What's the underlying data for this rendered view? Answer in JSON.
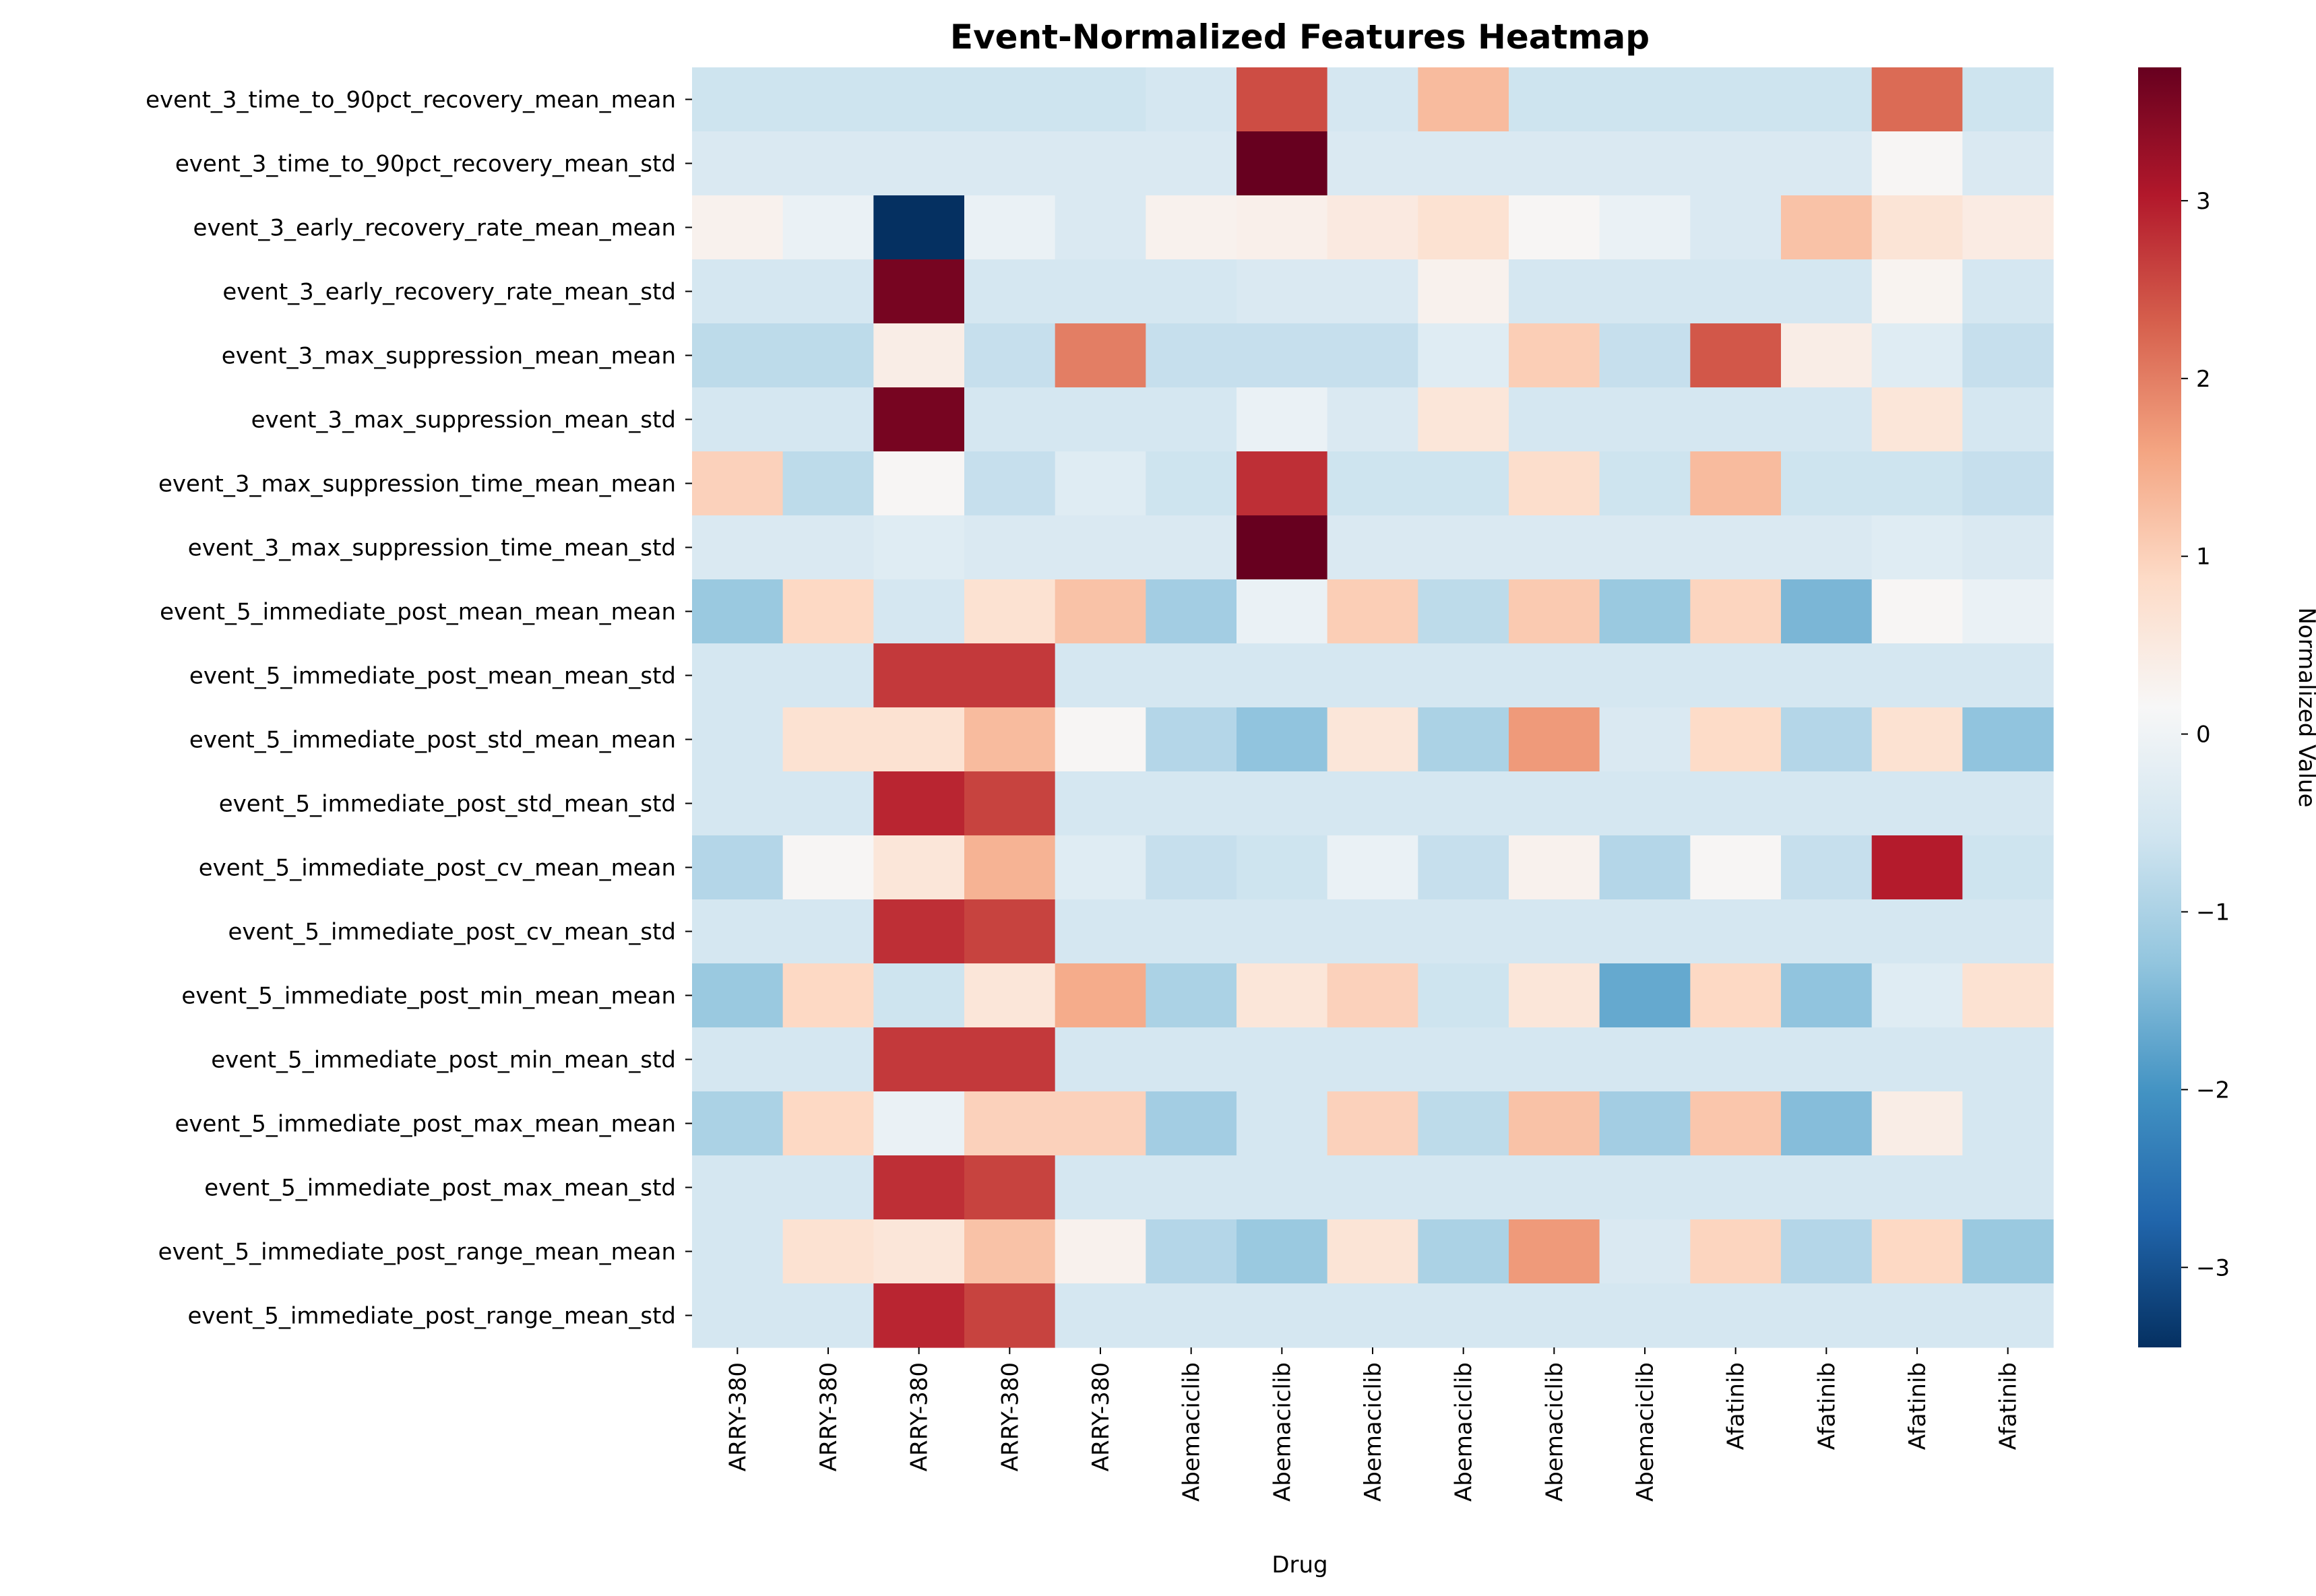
{
  "chart_data": {
    "type": "heatmap",
    "title": "Event-Normalized Features Heatmap",
    "xlabel": "Drug",
    "ylabel": "",
    "colorbar_label": "Normalized Value",
    "colormap": "RdBu_r",
    "vmin": -3.45,
    "vmax": 3.75,
    "colorbar_ticks": [
      -3,
      -2,
      -1,
      0,
      1,
      2,
      3
    ],
    "colorbar_tick_labels": [
      "−3",
      "−2",
      "−1",
      "0",
      "1",
      "2",
      "3"
    ],
    "x": [
      "ARRY-380",
      "ARRY-380",
      "ARRY-380",
      "ARRY-380",
      "ARRY-380",
      "Abemaciclib",
      "Abemaciclib",
      "Abemaciclib",
      "Abemaciclib",
      "Abemaciclib",
      "Abemaciclib",
      "Afatinib",
      "Afatinib",
      "Afatinib",
      "Afatinib"
    ],
    "y": [
      "event_3_time_to_90pct_recovery_mean_mean",
      "event_3_time_to_90pct_recovery_mean_std",
      "event_3_early_recovery_rate_mean_mean",
      "event_3_early_recovery_rate_mean_std",
      "event_3_max_suppression_mean_mean",
      "event_3_max_suppression_mean_std",
      "event_3_max_suppression_time_mean_mean",
      "event_3_max_suppression_time_mean_std",
      "event_5_immediate_post_mean_mean_mean",
      "event_5_immediate_post_mean_mean_std",
      "event_5_immediate_post_std_mean_mean",
      "event_5_immediate_post_std_mean_std",
      "event_5_immediate_post_cv_mean_mean",
      "event_5_immediate_post_cv_mean_std",
      "event_5_immediate_post_min_mean_mean",
      "event_5_immediate_post_min_mean_std",
      "event_5_immediate_post_max_mean_mean",
      "event_5_immediate_post_max_mean_std",
      "event_5_immediate_post_range_mean_mean",
      "event_5_immediate_post_range_mean_std"
    ],
    "values": [
      [
        -0.6,
        -0.6,
        -0.6,
        -0.6,
        -0.6,
        -0.5,
        2.5,
        -0.5,
        1.3,
        -0.6,
        -0.6,
        -0.6,
        -0.6,
        2.2,
        -0.6
      ],
      [
        -0.4,
        -0.4,
        -0.4,
        -0.4,
        -0.4,
        -0.4,
        3.75,
        -0.4,
        -0.4,
        -0.4,
        -0.4,
        -0.4,
        -0.4,
        0.2,
        -0.4
      ],
      [
        0.3,
        -0.1,
        -3.45,
        -0.1,
        -0.4,
        0.3,
        0.35,
        0.5,
        0.7,
        0.2,
        -0.1,
        -0.4,
        1.2,
        0.65,
        0.45
      ],
      [
        -0.5,
        -0.5,
        3.6,
        -0.5,
        -0.5,
        -0.5,
        -0.4,
        -0.4,
        0.3,
        -0.5,
        -0.5,
        -0.5,
        -0.5,
        0.25,
        -0.5
      ],
      [
        -0.8,
        -0.8,
        0.4,
        -0.7,
        2.0,
        -0.7,
        -0.7,
        -0.7,
        -0.3,
        1.05,
        -0.7,
        2.4,
        0.4,
        -0.3,
        -0.7
      ],
      [
        -0.5,
        -0.5,
        3.6,
        -0.5,
        -0.5,
        -0.5,
        -0.1,
        -0.4,
        0.6,
        -0.5,
        -0.5,
        -0.5,
        -0.5,
        0.6,
        -0.5
      ],
      [
        1.0,
        -0.8,
        0.2,
        -0.7,
        -0.3,
        -0.6,
        2.8,
        -0.6,
        -0.6,
        0.8,
        -0.6,
        1.3,
        -0.6,
        -0.6,
        -0.7
      ],
      [
        -0.4,
        -0.4,
        -0.3,
        -0.4,
        -0.4,
        -0.4,
        3.75,
        -0.4,
        -0.4,
        -0.4,
        -0.4,
        -0.4,
        -0.4,
        -0.3,
        -0.4
      ],
      [
        -1.2,
        0.9,
        -0.5,
        0.7,
        1.2,
        -1.1,
        -0.1,
        1.05,
        -0.8,
        1.1,
        -1.2,
        0.95,
        -1.5,
        0.2,
        -0.1
      ],
      [
        -0.5,
        -0.5,
        2.7,
        2.7,
        -0.5,
        -0.5,
        -0.5,
        -0.5,
        -0.5,
        -0.5,
        -0.5,
        -0.5,
        -0.5,
        -0.5,
        -0.5
      ],
      [
        -0.5,
        0.7,
        0.7,
        1.3,
        0.2,
        -0.9,
        -1.3,
        0.6,
        -1.0,
        1.7,
        -0.4,
        0.85,
        -0.9,
        0.7,
        -1.3
      ],
      [
        -0.5,
        -0.5,
        2.9,
        2.6,
        -0.5,
        -0.5,
        -0.5,
        -0.5,
        -0.5,
        -0.5,
        -0.5,
        -0.5,
        -0.5,
        -0.5,
        -0.5
      ],
      [
        -0.9,
        0.2,
        0.6,
        1.4,
        -0.3,
        -0.7,
        -0.6,
        -0.1,
        -0.7,
        0.3,
        -0.9,
        0.2,
        -0.7,
        3.0,
        -0.6
      ],
      [
        -0.5,
        -0.5,
        2.8,
        2.6,
        -0.5,
        -0.5,
        -0.5,
        -0.5,
        -0.5,
        -0.5,
        -0.5,
        -0.5,
        -0.5,
        -0.5,
        -0.5
      ],
      [
        -1.2,
        0.9,
        -0.6,
        0.6,
        1.5,
        -1.0,
        0.6,
        1.0,
        -0.6,
        0.6,
        -1.7,
        0.9,
        -1.3,
        -0.3,
        0.7
      ],
      [
        -0.5,
        -0.5,
        2.7,
        2.7,
        -0.5,
        -0.5,
        -0.5,
        -0.5,
        -0.5,
        -0.5,
        -0.5,
        -0.5,
        -0.5,
        -0.5,
        -0.5
      ],
      [
        -1.0,
        0.9,
        -0.1,
        1.0,
        1.0,
        -1.1,
        -0.5,
        1.0,
        -0.8,
        1.2,
        -1.1,
        1.15,
        -1.4,
        0.4,
        -0.5
      ],
      [
        -0.5,
        -0.5,
        2.8,
        2.6,
        -0.5,
        -0.5,
        -0.5,
        -0.5,
        -0.5,
        -0.5,
        -0.5,
        -0.5,
        -0.5,
        -0.5,
        -0.5
      ],
      [
        -0.5,
        0.7,
        0.6,
        1.2,
        0.3,
        -0.9,
        -1.2,
        0.65,
        -1.0,
        1.7,
        -0.4,
        0.95,
        -0.9,
        0.9,
        -1.2
      ],
      [
        -0.5,
        -0.5,
        2.9,
        2.6,
        -0.5,
        -0.5,
        -0.5,
        -0.5,
        -0.5,
        -0.5,
        -0.5,
        -0.5,
        -0.5,
        -0.5,
        -0.5
      ]
    ]
  }
}
